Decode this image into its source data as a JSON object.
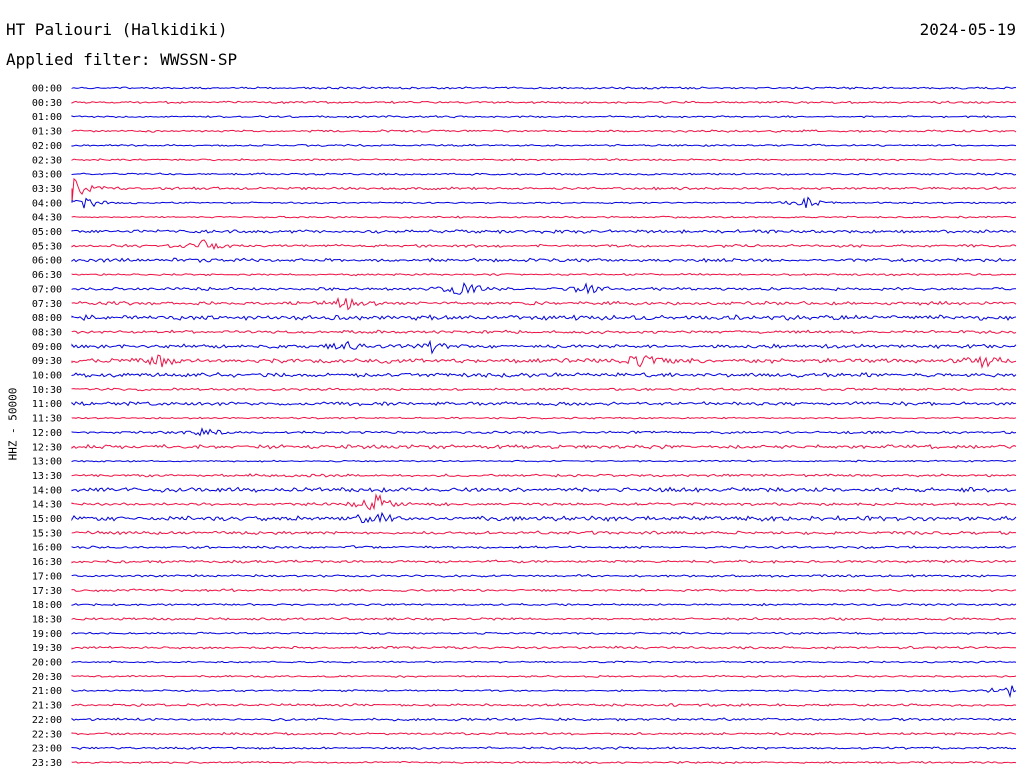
{
  "header": {
    "station": "HT Paliouri (Halkidiki)",
    "date": "2024-05-19",
    "filter_label": "Applied filter: WWSSN-SP"
  },
  "colors": {
    "even_row": "#0000dd",
    "odd_row": "#ee1144"
  },
  "chart_data": {
    "type": "line",
    "ylabel": "HHZ - 50000",
    "rows": [
      "00:00",
      "00:30",
      "01:00",
      "01:30",
      "02:00",
      "02:30",
      "03:00",
      "03:30",
      "04:00",
      "04:30",
      "05:00",
      "05:30",
      "06:00",
      "06:30",
      "07:00",
      "07:30",
      "08:00",
      "08:30",
      "09:00",
      "09:30",
      "10:00",
      "10:30",
      "11:00",
      "11:30",
      "12:00",
      "12:30",
      "13:00",
      "13:30",
      "14:00",
      "14:30",
      "15:00",
      "15:30",
      "16:00",
      "16:30",
      "17:00",
      "17:30",
      "18:00",
      "18:30",
      "19:00",
      "19:30",
      "20:00",
      "20:30",
      "21:00",
      "21:30",
      "22:00",
      "22:30",
      "23:00",
      "23:30"
    ],
    "row_duration_min": 30,
    "grid": false
  }
}
